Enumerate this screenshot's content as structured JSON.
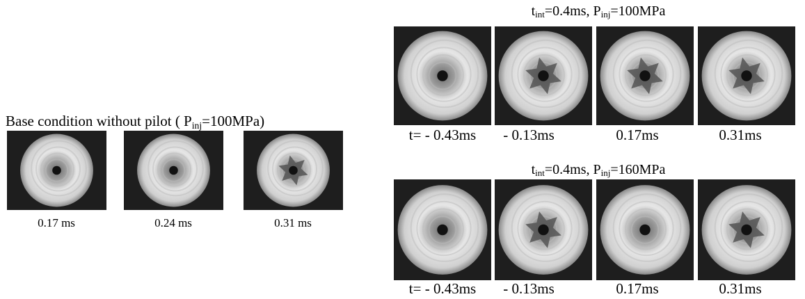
{
  "left": {
    "title": [
      "Base condition without pilot ( P",
      "inj",
      "=100MPa)"
    ],
    "captions": [
      "0.17 ms",
      "0.24 ms",
      "0.31 ms"
    ]
  },
  "groups": [
    {
      "title": [
        "t",
        "int",
        "=0.4ms, P",
        "inj",
        "=100MPa"
      ],
      "captions": [
        "t= - 0.43ms",
        "- 0.13ms",
        "0.17ms",
        "0.31ms"
      ]
    },
    {
      "title": [
        "t",
        "int",
        "=0.4ms, P",
        "inj",
        "=160MPa"
      ],
      "captions": [
        "t= - 0.43ms",
        "- 0.13ms",
        "0.17ms",
        "0.31ms"
      ]
    }
  ]
}
